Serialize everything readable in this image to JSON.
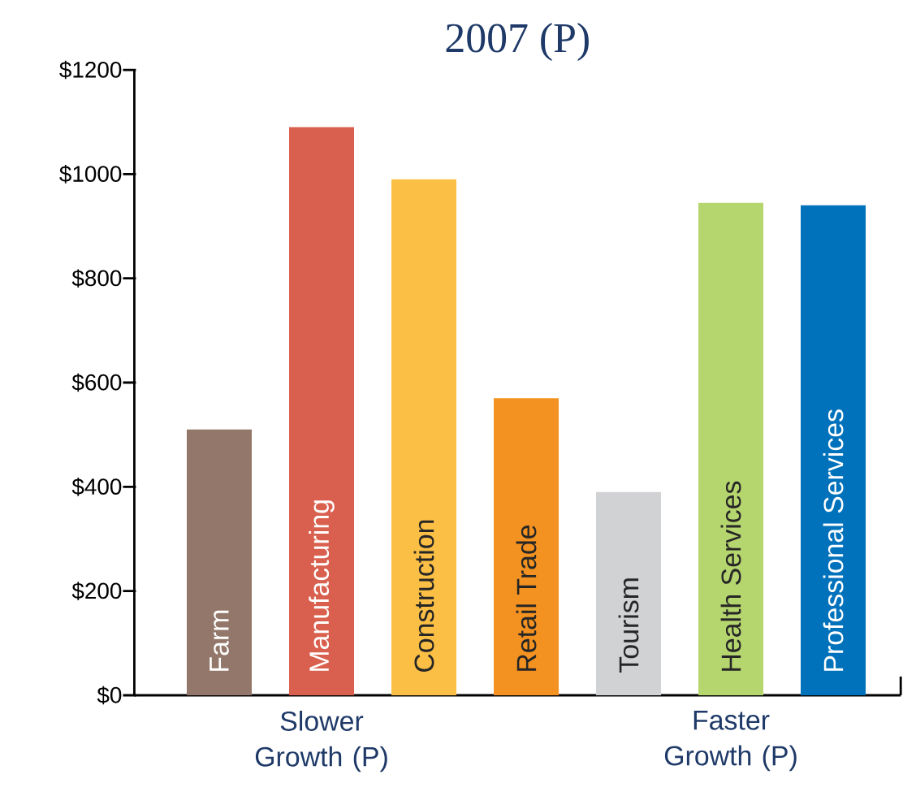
{
  "chart_data": {
    "type": "bar",
    "title": "2007 (P)",
    "categories": [
      "Farm",
      "Manufacturing",
      "Construction",
      "Retail Trade",
      "Tourism",
      "Health Services",
      "Professional Services"
    ],
    "values": [
      510,
      1090,
      990,
      570,
      390,
      945,
      940
    ],
    "colors": [
      "#93776a",
      "#d9604e",
      "#fbbf45",
      "#f39220",
      "#d1d2d4",
      "#b5d56f",
      "#0072bc"
    ],
    "ylim": [
      0,
      1200
    ],
    "yticks": [
      {
        "value": 0,
        "label": "$0"
      },
      {
        "value": 200,
        "label": "$200"
      },
      {
        "value": 400,
        "label": "$400"
      },
      {
        "value": 600,
        "label": "$600"
      },
      {
        "value": 800,
        "label": "$800"
      },
      {
        "value": 1000,
        "label": "$1000"
      },
      {
        "value": 1200,
        "label": "$1200"
      }
    ],
    "annotations": [
      "Slower Growth (P)",
      "Faster Growth (P)"
    ],
    "grid": false
  }
}
